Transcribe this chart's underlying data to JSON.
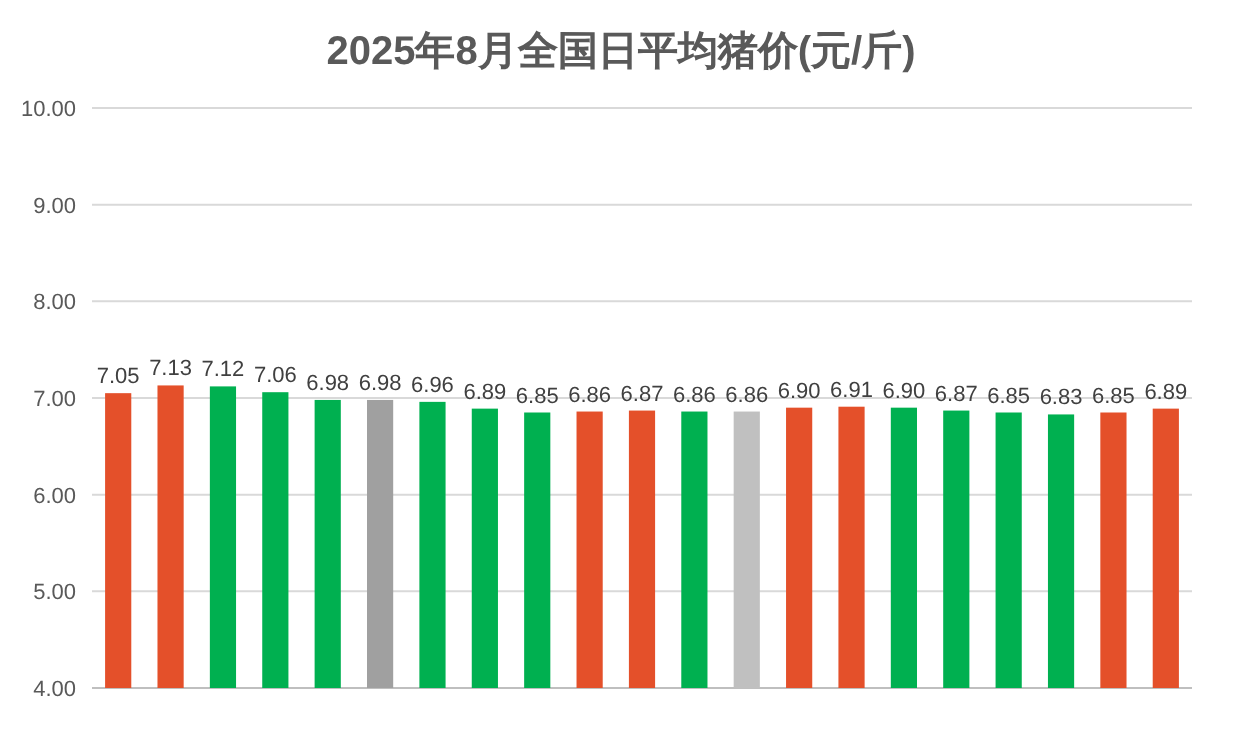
{
  "chart_data": {
    "type": "bar",
    "title": "2025年8月全国日平均猪价(元/斤)",
    "categories": [
      null,
      null,
      null,
      null,
      null,
      null,
      null,
      null,
      null,
      null,
      null,
      null,
      null,
      null,
      null,
      null,
      null,
      null,
      null,
      null,
      null
    ],
    "values": [
      7.05,
      7.13,
      7.12,
      7.06,
      6.98,
      6.98,
      6.96,
      6.89,
      6.85,
      6.86,
      6.87,
      6.86,
      6.86,
      6.9,
      6.91,
      6.9,
      6.87,
      6.85,
      6.83,
      6.85,
      6.89
    ],
    "value_labels": [
      "7.05",
      "7.13",
      "7.12",
      "7.06",
      "6.98",
      "6.98",
      "6.96",
      "6.89",
      "6.85",
      "6.86",
      "6.87",
      "6.86",
      "6.86",
      "6.90",
      "6.91",
      "6.90",
      "6.87",
      "6.85",
      "6.83",
      "6.85",
      "6.89"
    ],
    "colors": [
      "#e4502a",
      "#e4502a",
      "#00b050",
      "#00b050",
      "#00b050",
      "#a0a0a0",
      "#00b050",
      "#00b050",
      "#00b050",
      "#e4502a",
      "#e4502a",
      "#00b050",
      "#c0c0c0",
      "#e4502a",
      "#e4502a",
      "#00b050",
      "#00b050",
      "#00b050",
      "#00b050",
      "#e4502a",
      "#e4502a"
    ],
    "ylim": [
      4,
      10
    ],
    "yticks": [
      {
        "value": 4,
        "label": "4.00"
      },
      {
        "value": 5,
        "label": "5.00"
      },
      {
        "value": 6,
        "label": "6.00"
      },
      {
        "value": 7,
        "label": "7.00"
      },
      {
        "value": 8,
        "label": "8.00"
      },
      {
        "value": 9,
        "label": "9.00"
      },
      {
        "value": 10,
        "label": "10.00"
      }
    ],
    "grid": "y"
  }
}
